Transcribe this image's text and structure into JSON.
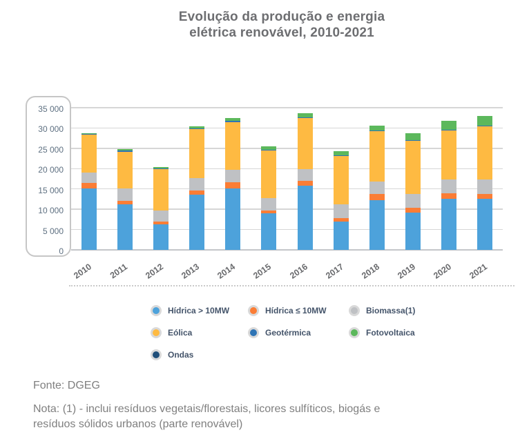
{
  "header": {
    "title_line1": "Evolução da produção e energia",
    "title_line2": "elétrica renovável, 2010-2021"
  },
  "chart_data": {
    "type": "bar",
    "subtype": "stacked-vertical",
    "title": "Evolução da produção e energia elétrica renovável, 2010-2021",
    "xlabel": "",
    "ylabel": "",
    "ylim": [
      0,
      35000
    ],
    "grid": true,
    "y_ticks": [
      "35 000",
      "30 000",
      "25 000",
      "20 000",
      "15 000",
      "10 000",
      "5 000",
      "0"
    ],
    "categories": [
      "2010",
      "2011",
      "2012",
      "2013",
      "2014",
      "2015",
      "2016",
      "2017",
      "2018",
      "2019",
      "2020",
      "2021"
    ],
    "series": [
      {
        "name": "Hídrica > 10MW",
        "color": "#4da2db",
        "values": [
          15200,
          11300,
          6300,
          13650,
          15100,
          9000,
          15800,
          7000,
          12200,
          9200,
          12600,
          12600
        ]
      },
      {
        "name": "Hídrica ≤ 10MW",
        "color": "#fb7d35",
        "values": [
          1200,
          850,
          700,
          950,
          1500,
          700,
          1150,
          750,
          1500,
          1150,
          1300,
          1150
        ]
      },
      {
        "name": "Biomassa(1)",
        "color": "#bfc1c4",
        "values": [
          2700,
          2950,
          2700,
          3150,
          3150,
          3100,
          3000,
          3400,
          3050,
          3400,
          3500,
          3600
        ]
      },
      {
        "name": "Eólica",
        "color": "#feba42",
        "values": [
          9200,
          9100,
          10100,
          12000,
          11750,
          11700,
          12500,
          11950,
          12400,
          13100,
          12000,
          13050
        ]
      },
      {
        "name": "Geotérmica",
        "color": "#2e74b5",
        "values": [
          200,
          210,
          200,
          200,
          200,
          200,
          200,
          220,
          230,
          230,
          200,
          250
        ]
      },
      {
        "name": "Fotovoltaica",
        "color": "#5cb85c",
        "values": [
          280,
          400,
          450,
          520,
          750,
          800,
          1050,
          980,
          1170,
          1670,
          2200,
          2350
        ]
      },
      {
        "name": "Ondas",
        "color": "#1f4e79",
        "values": [
          0,
          0,
          0,
          0,
          0,
          0,
          0,
          0,
          0,
          0,
          0,
          0
        ]
      }
    ],
    "legend_position": "bottom"
  },
  "footer": {
    "source": "Fonte: DGEG",
    "note_line1": "Nota: (1) - inclui resíduos vegetais/florestais, licores sulfíticos, biogás e",
    "note_line2": "resíduos sólidos urbanos (parte renovável)"
  }
}
